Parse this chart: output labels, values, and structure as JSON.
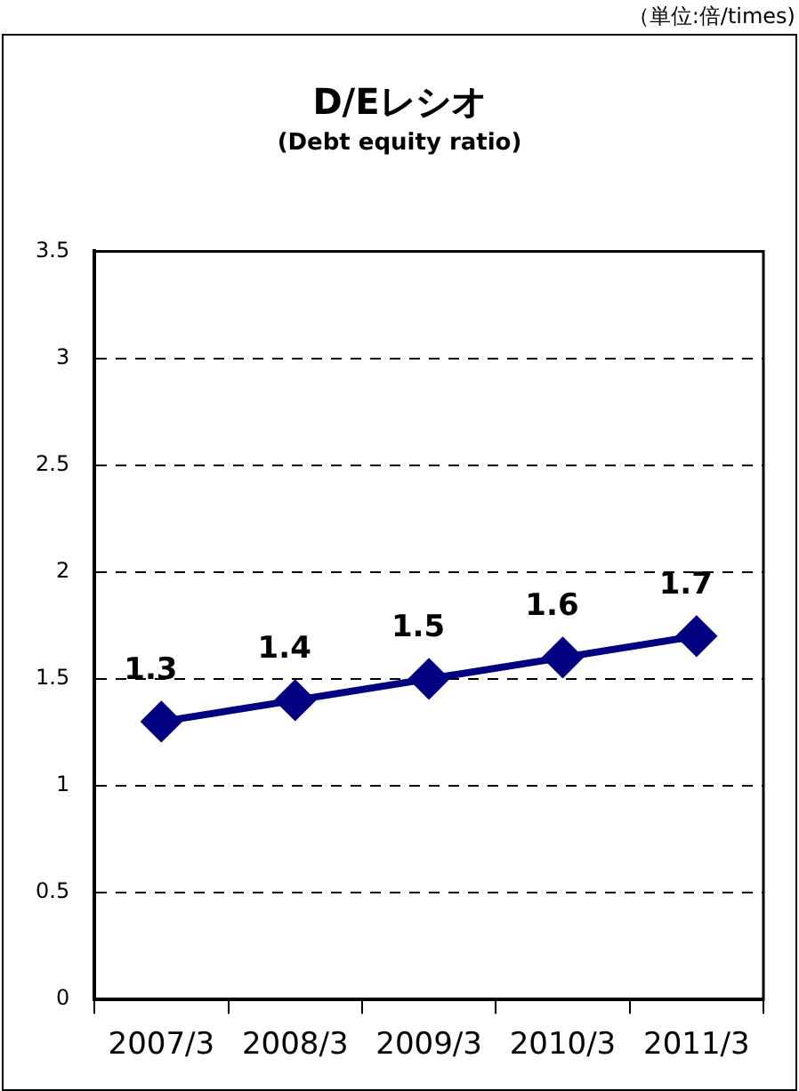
{
  "chart_data": {
    "type": "line",
    "title": "D/Eレシオ",
    "subtitle": "(Debt equity ratio)",
    "annotations": [
      "（単位:倍/times)"
    ],
    "categories": [
      "2007/3",
      "2008/3",
      "2009/3",
      "2010/3",
      "2011/3"
    ],
    "series": [
      {
        "color": "#000080",
        "values": [
          1.3,
          1.4,
          1.5,
          1.6,
          1.7
        ]
      }
    ],
    "ylim": [
      0,
      3.5
    ],
    "yticks": [
      0,
      0.5,
      1,
      1.5,
      2,
      2.5,
      3,
      3.5
    ],
    "grid": "y",
    "legend": false,
    "marker": "diamond",
    "line_style": "solid",
    "data_labels": true
  }
}
